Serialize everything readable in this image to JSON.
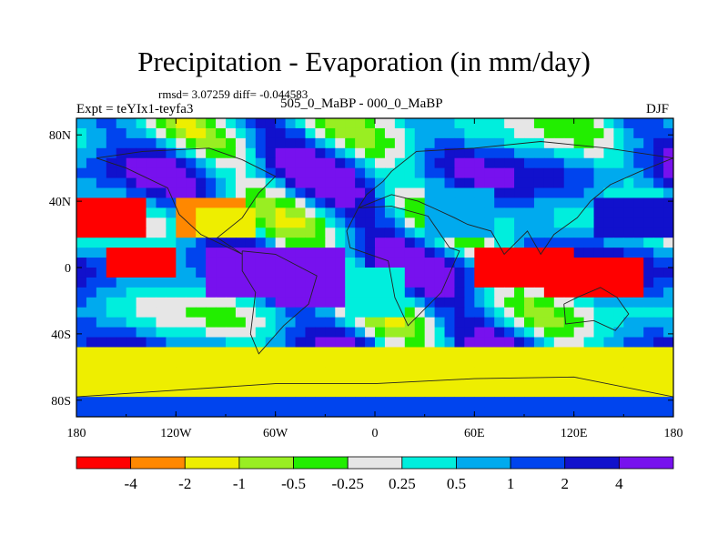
{
  "chart_data": {
    "type": "heatmap",
    "title": "Precipitation - Evaporation (in mm/day)",
    "stats_line": "rmsd= 3.07259 diff= -0.044583",
    "experiment": "Expt = teYIx1-teyfa3",
    "subtitle": "505_0_MaBP - 000_0_MaBP",
    "season": "DJF",
    "x_tick_labels": [
      "180",
      "120W",
      "60W",
      "0",
      "60E",
      "120E",
      "180"
    ],
    "x_tick_values": [
      -180,
      -120,
      -60,
      0,
      60,
      120,
      180
    ],
    "y_tick_labels": [
      "80N",
      "40N",
      "0",
      "40S",
      "80S"
    ],
    "y_tick_values": [
      80,
      40,
      0,
      -40,
      -80
    ],
    "xlim": [
      -180,
      180
    ],
    "ylim": [
      -90,
      90
    ],
    "colorbar": {
      "levels": [
        "-4",
        "-2",
        "-1",
        "-0.5",
        "-0.25",
        "0.25",
        "0.5",
        "1",
        "2",
        "4"
      ],
      "colors": [
        "#ff0000",
        "#ff8800",
        "#eeee00",
        "#99ee22",
        "#22ee00",
        "#e6e6e6",
        "#00eedd",
        "#00aaee",
        "#0044ee",
        "#1111cc",
        "#7711ee"
      ]
    },
    "approx_regions": [
      {
        "lon": [
          -180,
          -140
        ],
        "lat": [
          20,
          45
        ],
        "class": 0
      },
      {
        "lon": [
          -160,
          -120
        ],
        "lat": [
          -5,
          10
        ],
        "class": 0
      },
      {
        "lon": [
          -120,
          -80
        ],
        "lat": [
          20,
          45
        ],
        "class": 1
      },
      {
        "lon": [
          -110,
          -70
        ],
        "lat": [
          20,
          35
        ],
        "class": 2
      },
      {
        "lon": [
          -100,
          -60
        ],
        "lat": [
          -15,
          15
        ],
        "class": 10
      },
      {
        "lon": [
          -60,
          -20
        ],
        "lat": [
          -25,
          10
        ],
        "class": 10
      },
      {
        "lon": [
          -20,
          20
        ],
        "lat": [
          -30,
          0
        ],
        "class": 6
      },
      {
        "lon": [
          30,
          70
        ],
        "lat": [
          20,
          50
        ],
        "class": 7
      },
      {
        "lon": [
          60,
          120
        ],
        "lat": [
          -10,
          15
        ],
        "class": 0
      },
      {
        "lon": [
          100,
          160
        ],
        "lat": [
          -20,
          5
        ],
        "class": 0
      },
      {
        "lon": [
          130,
          180
        ],
        "lat": [
          20,
          40
        ],
        "class": 9
      },
      {
        "lon": [
          -180,
          180
        ],
        "lat": [
          -75,
          -50
        ],
        "class": 2
      },
      {
        "lon": [
          -180,
          180
        ],
        "lat": [
          -90,
          -78
        ],
        "class": 8
      }
    ]
  }
}
